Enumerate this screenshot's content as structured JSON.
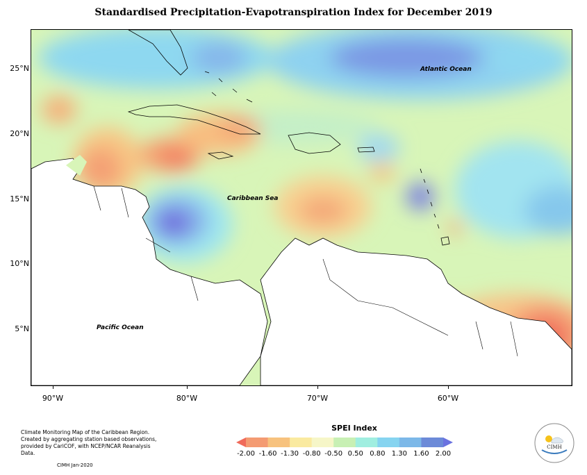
{
  "title": "Standardised Precipitation-Evapotranspiration Index for December 2019",
  "map": {
    "labels": {
      "atlantic": "Atlantic Ocean",
      "caribbean": "Caribbean Sea",
      "pacific": "Pacific Ocean"
    },
    "lat_ticks": [
      "25°N",
      "20°N",
      "15°N",
      "10°N",
      "5°N"
    ],
    "lon_ticks": [
      "90°W",
      "80°W",
      "70°W",
      "60°W"
    ]
  },
  "legend": {
    "title": "SPEI Index",
    "values": [
      "-2.00",
      "-1.60",
      "-1.30",
      "-0.80",
      "-0.50",
      "0.50",
      "0.80",
      "1.30",
      "1.60",
      "2.00"
    ],
    "colors": [
      "#f06a5a",
      "#f49b72",
      "#f7c27e",
      "#faeaa0",
      "#f6f6c8",
      "#c8f0b4",
      "#a0eee0",
      "#86d4f0",
      "#7cb8e8",
      "#6c8ad8",
      "#6a72e0"
    ]
  },
  "footer": {
    "description": "Climate Monitoring Map of the Caribbean Region. Created by aggregating station based observations, provided by CariCOF, with NCEP/NCAR Reanalysis Data.",
    "credit": "CIMH  Jan-2020",
    "logo_text": "CIMH"
  }
}
